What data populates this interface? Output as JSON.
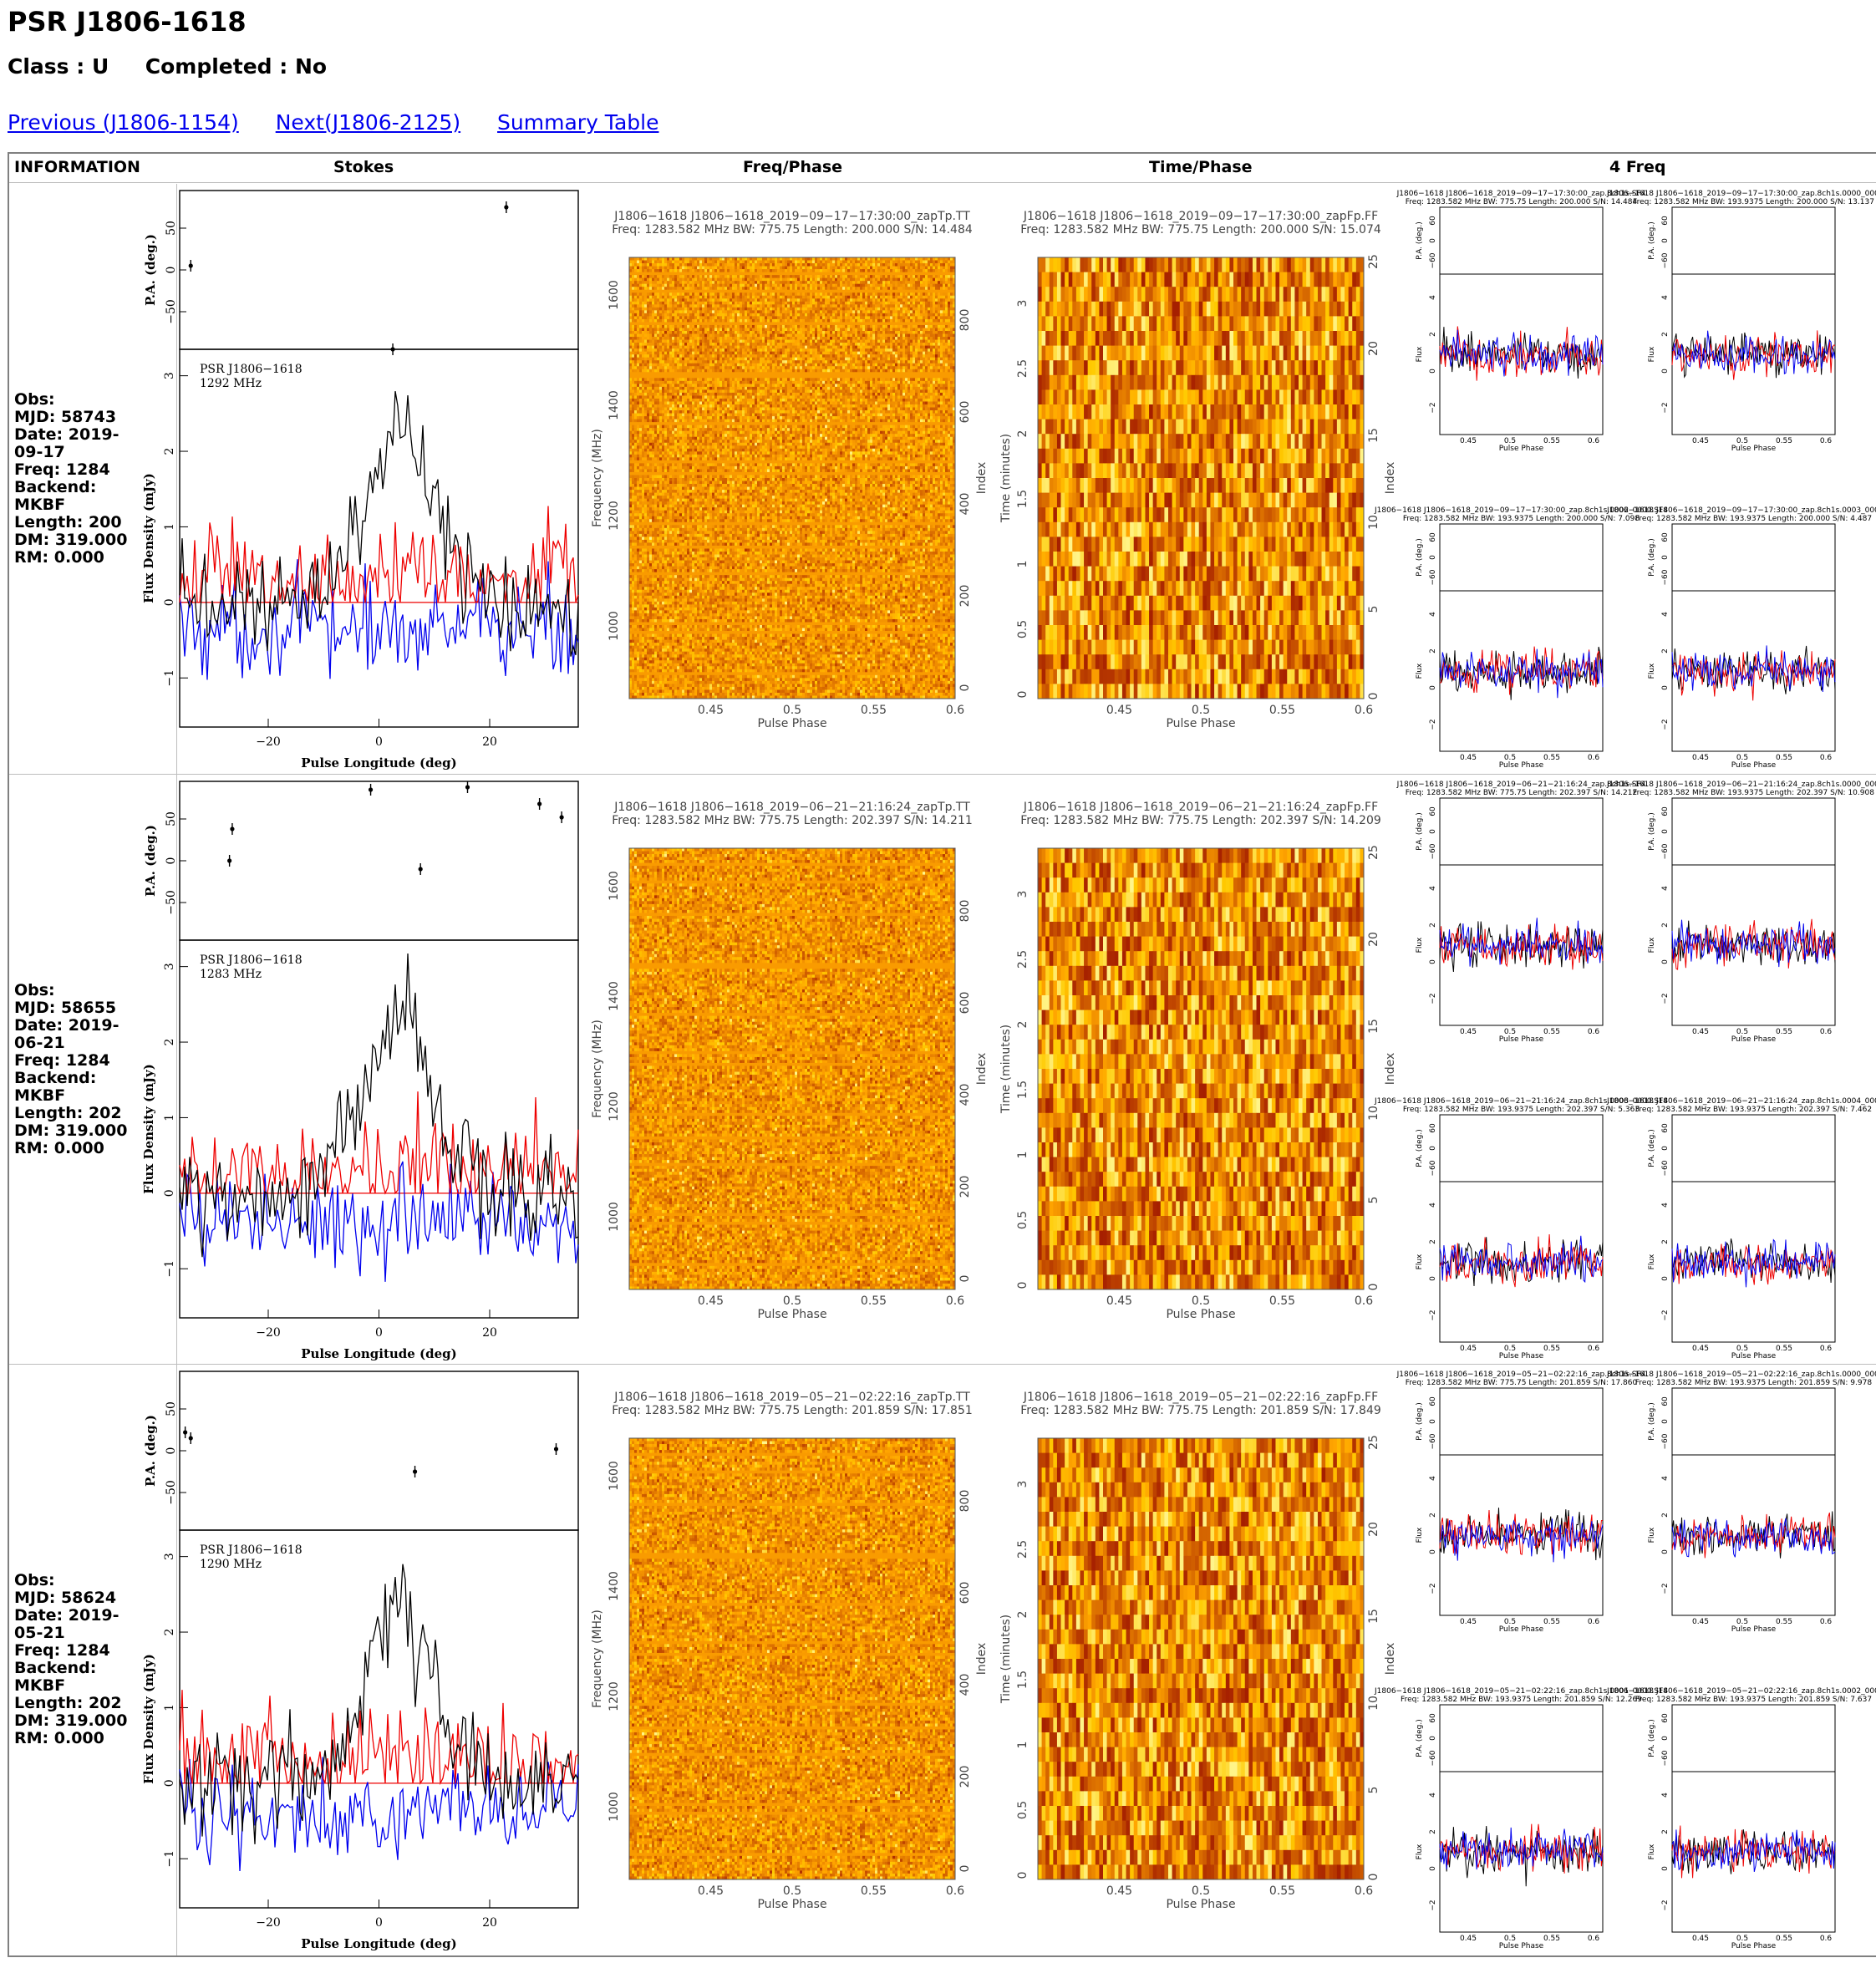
{
  "page": {
    "title": "PSR J1806-1618",
    "class_line": "Class : U     Completed : No",
    "nav": [
      {
        "label": "Previous (J1806-1154)"
      },
      {
        "label": "Next(J1806-2125)"
      },
      {
        "label": "Summary Table"
      }
    ],
    "table_headers": [
      "INFORMATION",
      "Stokes",
      "Freq/Phase",
      "Time/Phase",
      "4 Freq"
    ]
  },
  "colors": {
    "link": "#0000ee",
    "stokes_I": "#000000",
    "stokes_L": "#ee0000",
    "stokes_V": "#0000ee",
    "heat_low": "#a52a00",
    "heat_high": "#fff7a0"
  },
  "rows": [
    {
      "info": "Obs:\nMJD: 58743\nDate: 2019-\n09-17\nFreq: 1284\nBackend:\nMKBF\nLength: 200\nDM: 319.000\nRM: 0.000",
      "stokes_label": "PSR J1806−1618\n1292 MHz",
      "pa_points": [
        [
          -34,
          5
        ],
        [
          23,
          75
        ],
        [
          2.5,
          -95
        ]
      ],
      "freq_title": "J1806−1618 J1806−1618_2019−09−17−17:30:00_zapTp.TT",
      "freq_sub": "Freq: 1283.582 MHz BW: 775.75 Length: 200.000 S/N: 14.484",
      "time_title": "J1806−1618 J1806−1618_2019−09−17−17:30:00_zapFp.FF",
      "time_sub": "Freq: 1283.582 MHz BW: 775.75 Length: 200.000 S/N: 15.074",
      "fq_titles": [
        [
          "J1806−1618 J1806−1618_2019−09−17−17:30:00_zap.8ch1s.SF4",
          "Freq: 1283.582 MHz BW: 775.75 Length: 200.000 S/N: 14.484"
        ],
        [
          "J1806−1618 J1806−1618_2019−09−17−17:30:00_zap.8ch1s.0000_0000.SF4",
          "Freq: 1283.582 MHz BW: 193.9375 Length: 200.000 S/N: 13.137"
        ],
        [
          "J1806−1618 J1806−1618_2019−09−17−17:30:00_zap.8ch1s.0002_0000.SF4",
          "Freq: 1283.582 MHz BW: 193.9375 Length: 200.000 S/N: 7.098"
        ],
        [
          "J1806−1618 J1806−1618_2019−09−17−17:30:00_zap.8ch1s.0003_0000.SF4",
          "Freq: 1283.582 MHz BW: 193.9375 Length: 200.000 S/N: 4.487"
        ]
      ]
    },
    {
      "info": "Obs:\nMJD: 58655\nDate: 2019-\n06-21\nFreq: 1284\nBackend:\nMKBF\nLength: 202\nDM: 319.000\nRM: 0.000",
      "stokes_label": "PSR J1806−1618\n1283 MHz",
      "pa_points": [
        [
          -27,
          0
        ],
        [
          -26.5,
          38
        ],
        [
          -1.5,
          85
        ],
        [
          7.5,
          -10
        ],
        [
          16,
          88
        ],
        [
          29,
          68
        ],
        [
          33,
          52
        ]
      ],
      "freq_title": "J1806−1618 J1806−1618_2019−06−21−21:16:24_zapTp.TT",
      "freq_sub": "Freq: 1283.582 MHz BW: 775.75 Length: 202.397 S/N: 14.211",
      "time_title": "J1806−1618 J1806−1618_2019−06−21−21:16:24_zapFp.FF",
      "time_sub": "Freq: 1283.582 MHz BW: 775.75 Length: 202.397 S/N: 14.209",
      "fq_titles": [
        [
          "J1806−1618 J1806−1618_2019−06−21−21:16:24_zap.8ch1s.SF4",
          "Freq: 1283.582 MHz BW: 775.75 Length: 202.397 S/N: 14.212"
        ],
        [
          "J1806−1618 J1806−1618_2019−06−21−21:16:24_zap.8ch1s.0000_0000.SF4",
          "Freq: 1283.582 MHz BW: 193.9375 Length: 202.397 S/N: 10.908"
        ],
        [
          "J1806−1618 J1806−1618_2019−06−21−21:16:24_zap.8ch1s.0003_0000.SF4",
          "Freq: 1283.582 MHz BW: 193.9375 Length: 202.397 S/N: 5.363"
        ],
        [
          "J1806−1618 J1806−1618_2019−06−21−21:16:24_zap.8ch1s.0004_0000.SF4",
          "Freq: 1283.582 MHz BW: 193.9375 Length: 202.397 S/N: 7.462"
        ]
      ]
    },
    {
      "info": "Obs:\nMJD: 58624\nDate: 2019-\n05-21\nFreq: 1284\nBackend:\nMKBF\nLength: 202\nDM: 319.000\nRM: 0.000",
      "stokes_label": "PSR J1806−1618\n1290 MHz",
      "pa_points": [
        [
          -35,
          22
        ],
        [
          -34,
          15
        ],
        [
          6.5,
          -25
        ],
        [
          32,
          2
        ]
      ],
      "freq_title": "J1806−1618 J1806−1618_2019−05−21−02:22:16_zapTp.TT",
      "freq_sub": "Freq: 1283.582 MHz BW: 775.75 Length: 201.859 S/N: 17.851",
      "time_title": "J1806−1618 J1806−1618_2019−05−21−02:22:16_zapFp.FF",
      "time_sub": "Freq: 1283.582 MHz BW: 775.75 Length: 201.859 S/N: 17.849",
      "fq_titles": [
        [
          "J1806−1618 J1806−1618_2019−05−21−02:22:16_zap.8ch1s.SF4",
          "Freq: 1283.582 MHz BW: 775.75 Length: 201.859 S/N: 17.860"
        ],
        [
          "J1806−1618 J1806−1618_2019−05−21−02:22:16_zap.8ch1s.0000_0000.SF4",
          "Freq: 1283.582 MHz BW: 193.9375 Length: 201.859 S/N: 9.978"
        ],
        [
          "J1806−1618 J1806−1618_2019−05−21−02:22:16_zap.8ch1s.0001_0000.SF4",
          "Freq: 1283.582 MHz BW: 193.9375 Length: 201.859 S/N: 12.269"
        ],
        [
          "J1806−1618 J1806−1618_2019−05−21−02:22:16_zap.8ch1s.0002_0000.SF4",
          "Freq: 1283.582 MHz BW: 193.9375 Length: 201.859 S/N: 7.637"
        ]
      ]
    }
  ],
  "axis_text": {
    "pa_label": "P.A. (deg.)",
    "flux_label": "Flux Density (mJy)",
    "lon_label": "Pulse Longitude (deg)",
    "freq_label": "Frequency (MHz)",
    "time_label": "Time (minutes)",
    "index_label": "Index",
    "phase_label": "Pulse Phase",
    "small_pa_label": "P.A. (deg.)",
    "small_flux_label": "Flux",
    "lon_ticks": [
      "−20",
      "0",
      "20"
    ],
    "pa_ticks": [
      "50",
      "0",
      "−50"
    ],
    "flux_ticks": [
      "3",
      "2",
      "1",
      "0",
      "−1"
    ],
    "phase_ticks": [
      "0.45",
      "0.5",
      "0.55",
      "0.6"
    ],
    "freq_ticks": [
      "1600",
      "1400",
      "1200",
      "1000"
    ],
    "freq_index_ticks": [
      "800",
      "600",
      "400",
      "200",
      "0"
    ],
    "time_ticks": [
      "3",
      "2.5",
      "2",
      "1.5",
      "1",
      "0.5",
      "0"
    ],
    "time_index_ticks": [
      "25",
      "20",
      "15",
      "10",
      "5",
      "0"
    ],
    "small_pa_ticks": [
      "60",
      "0",
      "−60"
    ],
    "small_flux_ticks": [
      "4",
      "2",
      "0",
      "−2"
    ]
  }
}
